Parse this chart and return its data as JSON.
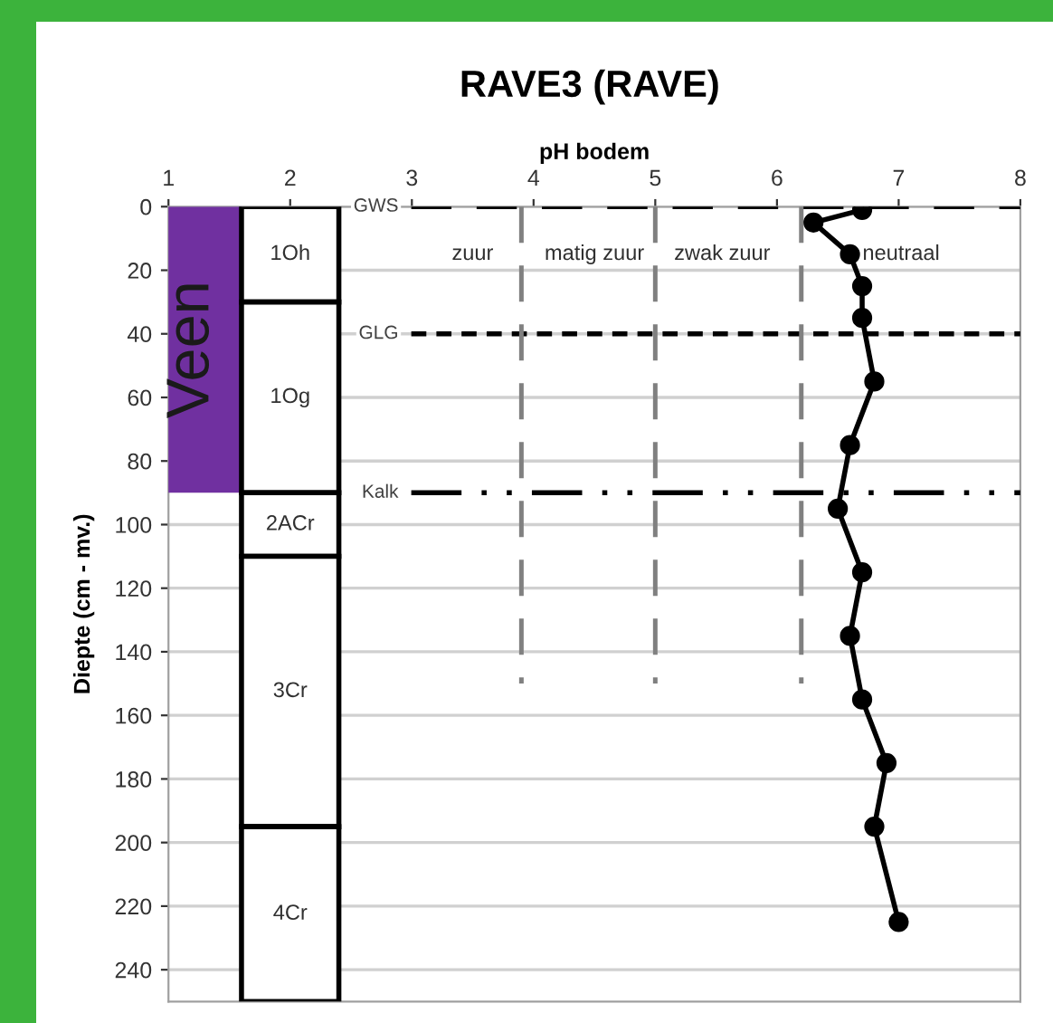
{
  "chart_data": {
    "type": "line",
    "title": "RAVE3 (RAVE)",
    "xlabel": "pH bodem",
    "ylabel": "Diepte (cm - mv.)",
    "xlim": [
      1,
      8
    ],
    "xticks": [
      1,
      2,
      3,
      4,
      5,
      6,
      7,
      8
    ],
    "ylim": [
      250,
      0
    ],
    "yticks": [
      0,
      20,
      40,
      60,
      80,
      100,
      120,
      140,
      160,
      180,
      200,
      220,
      240
    ],
    "grid": "y",
    "series": [
      {
        "type": "bar",
        "name": "Veen",
        "color": "#7030a0",
        "x": [
          1.2
        ],
        "base": [
          0
        ],
        "values": [
          90
        ]
      },
      {
        "type": "bar",
        "name": "1Oh",
        "color": "#ffffff",
        "x": [
          2
        ],
        "base": [
          0
        ],
        "values": [
          30
        ]
      },
      {
        "type": "bar",
        "name": "1Og",
        "color": "#ffffff",
        "x": [
          2
        ],
        "base": [
          30
        ],
        "values": [
          60
        ]
      },
      {
        "type": "bar",
        "name": "2ACr",
        "color": "#ffffff",
        "x": [
          2
        ],
        "base": [
          90
        ],
        "values": [
          20
        ]
      },
      {
        "type": "bar",
        "name": "3Cr",
        "color": "#ffffff",
        "x": [
          2
        ],
        "base": [
          110
        ],
        "values": [
          85
        ]
      },
      {
        "type": "bar",
        "name": "4Cr",
        "color": "#ffffff",
        "x": [
          2
        ],
        "base": [
          195
        ],
        "values": [
          55
        ]
      },
      {
        "type": "line",
        "color": "#808080",
        "line_style": "dashed",
        "marker": "none",
        "x": [
          3.9,
          3.9
        ],
        "values": [
          0,
          150
        ]
      },
      {
        "type": "line",
        "color": "#808080",
        "line_style": "dashed",
        "marker": "none",
        "x": [
          5.0,
          5.0
        ],
        "values": [
          0,
          150
        ]
      },
      {
        "type": "line",
        "color": "#808080",
        "line_style": "dashed",
        "marker": "none",
        "x": [
          6.2,
          6.2
        ],
        "values": [
          0,
          150
        ]
      },
      {
        "color": "#000000",
        "line_style": "solid",
        "marker": "circle",
        "x": [
          6.7,
          6.3,
          6.6,
          6.7,
          6.7,
          6.8,
          6.6,
          6.5,
          6.7,
          6.6,
          6.7,
          6.9,
          6.8,
          7.0
        ],
        "values": [
          1,
          5,
          15,
          25,
          35,
          55,
          75,
          95,
          115,
          135,
          155,
          175,
          195,
          225
        ]
      }
    ],
    "ref_lines": [
      {
        "axis": "y",
        "value": 0,
        "label": "GWS",
        "line_style": "dashed",
        "color": "#000000"
      },
      {
        "axis": "y",
        "value": 40,
        "label": "GLG",
        "line_style": "dotted",
        "color": "#000000"
      },
      {
        "axis": "y",
        "value": 90,
        "label": "Kalk",
        "line_style": "dashdot",
        "color": "#000000"
      }
    ],
    "annotations": [
      "zuur",
      "matig zuur",
      "zwak zuur",
      "neutraal"
    ]
  }
}
